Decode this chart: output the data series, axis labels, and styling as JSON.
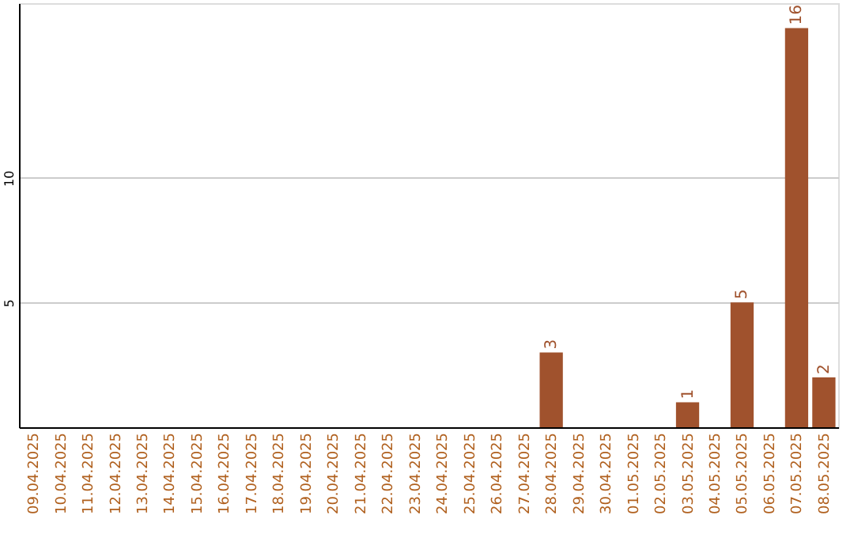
{
  "chart_data": {
    "type": "bar",
    "categories": [
      "09.04.2025",
      "10.04.2025",
      "11.04.2025",
      "12.04.2025",
      "13.04.2025",
      "14.04.2025",
      "15.04.2025",
      "16.04.2025",
      "17.04.2025",
      "18.04.2025",
      "19.04.2025",
      "20.04.2025",
      "21.04.2025",
      "22.04.2025",
      "23.04.2025",
      "24.04.2025",
      "25.04.2025",
      "26.04.2025",
      "27.04.2025",
      "28.04.2025",
      "29.04.2025",
      "30.04.2025",
      "01.05.2025",
      "02.05.2025",
      "03.05.2025",
      "04.05.2025",
      "05.05.2025",
      "06.05.2025",
      "07.05.2025",
      "08.05.2025"
    ],
    "values": [
      0,
      0,
      0,
      0,
      0,
      0,
      0,
      0,
      0,
      0,
      0,
      0,
      0,
      0,
      0,
      0,
      0,
      0,
      0,
      3,
      0,
      0,
      0,
      0,
      1,
      0,
      5,
      0,
      16,
      2
    ],
    "value_labels": [
      null,
      null,
      null,
      null,
      null,
      null,
      null,
      null,
      null,
      null,
      null,
      null,
      null,
      null,
      null,
      null,
      null,
      null,
      null,
      "3",
      null,
      null,
      null,
      null,
      "1",
      null,
      "5",
      null,
      "16",
      "2"
    ],
    "color": "#a0522d",
    "ylim": [
      0,
      17
    ],
    "yticks": [
      5,
      10
    ],
    "grid": "y"
  }
}
